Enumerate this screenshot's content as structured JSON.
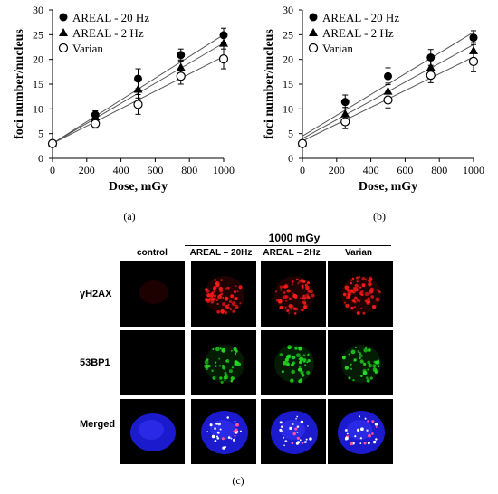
{
  "chart_data": [
    {
      "type": "scatter",
      "panel_label": "(a)",
      "xlabel": "Dose, mGy",
      "ylabel": "foci number/nucleus",
      "xlim": [
        0,
        1000
      ],
      "ylim": [
        0,
        30
      ],
      "xticks": [
        0,
        200,
        400,
        600,
        800,
        1000
      ],
      "yticks": [
        0,
        5,
        10,
        15,
        20,
        25,
        30
      ],
      "legend_position": "top-left",
      "x": [
        0,
        250,
        500,
        750,
        1000
      ],
      "series": [
        {
          "name": "AREAL - 20 Hz",
          "marker": "filled-circle",
          "values": [
            3.0,
            8.8,
            16.1,
            20.9,
            24.9
          ],
          "errors": [
            0.4,
            0.8,
            2.0,
            1.2,
            1.4
          ],
          "fit": [
            3.0,
            25.0
          ]
        },
        {
          "name": "AREAL - 2 Hz",
          "marker": "filled-triangle",
          "values": [
            3.0,
            8.4,
            14.0,
            18.4,
            23.3
          ],
          "errors": [
            0.4,
            0.8,
            1.8,
            1.5,
            1.8
          ],
          "fit": [
            3.0,
            23.3
          ]
        },
        {
          "name": "Varian",
          "marker": "open-circle",
          "values": [
            3.0,
            7.0,
            10.9,
            16.6,
            20.1
          ],
          "errors": [
            0.4,
            0.9,
            2.0,
            1.6,
            2.0
          ],
          "fit": [
            3.0,
            20.6
          ]
        }
      ]
    },
    {
      "type": "scatter",
      "panel_label": "(b)",
      "xlabel": "Dose, mGy",
      "ylabel": "foci number/nucleus",
      "xlim": [
        0,
        1000
      ],
      "ylim": [
        0,
        30
      ],
      "xticks": [
        0,
        200,
        400,
        600,
        800,
        1000
      ],
      "yticks": [
        0,
        5,
        10,
        15,
        20,
        25,
        30
      ],
      "legend_position": "top-left",
      "x": [
        0,
        250,
        500,
        750,
        1000
      ],
      "series": [
        {
          "name": "AREAL - 20 Hz",
          "marker": "filled-circle",
          "values": [
            3.0,
            11.4,
            16.6,
            20.4,
            24.4
          ],
          "errors": [
            0.4,
            1.4,
            1.7,
            1.6,
            1.4
          ],
          "fit": [
            4.5,
            25.5
          ]
        },
        {
          "name": "AREAL - 2 Hz",
          "marker": "filled-triangle",
          "values": [
            3.0,
            9.0,
            13.6,
            18.4,
            21.8
          ],
          "errors": [
            0.4,
            1.3,
            1.6,
            1.4,
            1.6
          ],
          "fit": [
            4.0,
            23.0
          ]
        },
        {
          "name": "Varian",
          "marker": "open-circle",
          "values": [
            3.0,
            7.4,
            11.8,
            16.8,
            19.6
          ],
          "errors": [
            0.4,
            1.4,
            1.6,
            1.5,
            2.1
          ],
          "fit": [
            3.5,
            20.5
          ]
        }
      ]
    }
  ],
  "microscopy": {
    "panel_label": "(c)",
    "dose_header": "1000 mGy",
    "columns": [
      "control",
      "AREAL – 20Hz",
      "AREAL – 2Hz",
      "Varian"
    ],
    "rows": [
      {
        "label": "γH2AX",
        "color": "#ff1a1a"
      },
      {
        "label": "53BP1",
        "color": "#22dd22"
      },
      {
        "label": "Merged",
        "color": "#2a2aff"
      }
    ]
  }
}
